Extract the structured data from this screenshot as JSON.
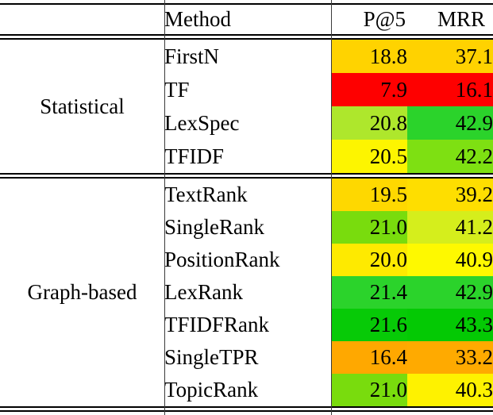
{
  "chart_data": {
    "type": "table",
    "title": "",
    "header": {
      "group": "",
      "method": "Method",
      "p5": "P@5",
      "mrr": "MRR"
    },
    "columns": [
      "Method",
      "P@5",
      "MRR"
    ],
    "groups": [
      {
        "label": "Statistical",
        "rows": [
          {
            "method": "FirstN",
            "p5": "18.8",
            "mrr": "37.1",
            "p5_color": "#FFD300",
            "mrr_color": "#FFD200"
          },
          {
            "method": "TF",
            "p5": "7.9",
            "mrr": "16.1",
            "p5_color": "#FE0000",
            "mrr_color": "#FE0000"
          },
          {
            "method": "LexSpec",
            "p5": "20.8",
            "mrr": "42.9",
            "p5_color": "#AEE72C",
            "mrr_color": "#2BD32B"
          },
          {
            "method": "TFIDF",
            "p5": "20.5",
            "mrr": "42.2",
            "p5_color": "#FDF500",
            "mrr_color": "#7EE012"
          }
        ]
      },
      {
        "label": "Graph-based",
        "rows": [
          {
            "method": "TextRank",
            "p5": "19.5",
            "mrr": "39.2",
            "p5_color": "#FED800",
            "mrr_color": "#FEDE00"
          },
          {
            "method": "SingleRank",
            "p5": "21.0",
            "mrr": "41.2",
            "p5_color": "#79DC0D",
            "mrr_color": "#D5EE1C"
          },
          {
            "method": "PositionRank",
            "p5": "20.0",
            "mrr": "40.9",
            "p5_color": "#FEEA00",
            "mrr_color": "#FEF900"
          },
          {
            "method": "LexRank",
            "p5": "21.4",
            "mrr": "42.9",
            "p5_color": "#2BD32B",
            "mrr_color": "#2BD32B"
          },
          {
            "method": "TFIDFRank",
            "p5": "21.6",
            "mrr": "43.3",
            "p5_color": "#07CA07",
            "mrr_color": "#04C904"
          },
          {
            "method": "SingleTPR",
            "p5": "16.4",
            "mrr": "33.2",
            "p5_color": "#FFA800",
            "mrr_color": "#FFAA00"
          },
          {
            "method": "TopicRank",
            "p5": "21.0",
            "mrr": "40.3",
            "p5_color": "#79DC0D",
            "mrr_color": "#FEF200"
          }
        ]
      }
    ],
    "layout": {
      "color_scale": {
        "type": "red-yellow-green-heatmap",
        "low": "#FE0000",
        "mid": "#FEF200",
        "high": "#04C904"
      },
      "grid": "horizontal double rules between header, groups and at bottom; vertical rules before Method and P@5 columns"
    }
  }
}
